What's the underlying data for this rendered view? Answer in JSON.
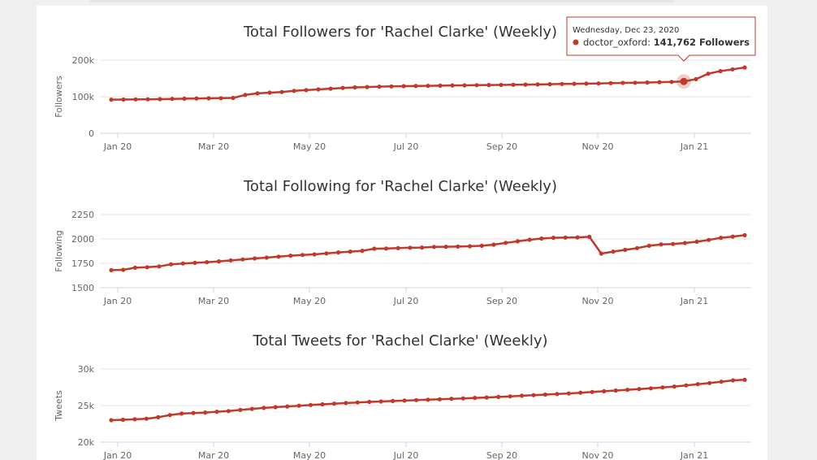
{
  "chart_data": [
    {
      "type": "line",
      "title": "Total Followers for 'Rachel Clarke' (Weekly)",
      "ylabel": "Followers",
      "ylim": [
        0,
        200000
      ],
      "yticks": [
        {
          "v": 0,
          "label": "0"
        },
        {
          "v": 100000,
          "label": "100k"
        },
        {
          "v": 200000,
          "label": "200k"
        }
      ],
      "xticks": [
        "Jan 20",
        "Mar 20",
        "May 20",
        "Jul 20",
        "Sep 20",
        "Nov 20",
        "Jan 21"
      ],
      "series": [
        {
          "color": "#c0392b",
          "values": [
            92000,
            92300,
            92700,
            93000,
            93400,
            94000,
            94600,
            95100,
            95600,
            96000,
            96600,
            105000,
            109000,
            111000,
            113000,
            116000,
            118000,
            120000,
            122000,
            124000,
            125500,
            126500,
            127500,
            128200,
            128800,
            129300,
            129800,
            130300,
            130800,
            131200,
            131600,
            132000,
            132300,
            132700,
            133100,
            133600,
            134200,
            134800,
            135300,
            135800,
            136300,
            137000,
            137700,
            138300,
            139000,
            139700,
            140400,
            141762,
            148000,
            163000,
            170000,
            175000,
            180000
          ]
        }
      ],
      "tooltip": {
        "date": "Wednesday, Dec 23, 2020",
        "series_name": "doctor_oxford",
        "value_text": "141,762 Followers",
        "index": 47
      }
    },
    {
      "type": "line",
      "title": "Total Following for 'Rachel Clarke' (Weekly)",
      "ylabel": "Following",
      "ylim": [
        1500,
        2250
      ],
      "yticks": [
        {
          "v": 1500,
          "label": "1500"
        },
        {
          "v": 1750,
          "label": "1750"
        },
        {
          "v": 2000,
          "label": "2000"
        },
        {
          "v": 2250,
          "label": "2250"
        }
      ],
      "xticks": [
        "Jan 20",
        "Mar 20",
        "May 20",
        "Jul 20",
        "Sep 20",
        "Nov 20",
        "Jan 21"
      ],
      "series": [
        {
          "color": "#c0392b",
          "values": [
            1680,
            1683,
            1705,
            1710,
            1718,
            1740,
            1748,
            1755,
            1762,
            1770,
            1780,
            1790,
            1800,
            1808,
            1818,
            1828,
            1836,
            1842,
            1852,
            1862,
            1870,
            1878,
            1900,
            1902,
            1906,
            1910,
            1912,
            1918,
            1920,
            1922,
            1925,
            1930,
            1942,
            1960,
            1976,
            1992,
            2004,
            2012,
            2014,
            2016,
            2022,
            1850,
            1870,
            1888,
            1906,
            1930,
            1944,
            1948,
            1958,
            1972,
            1990,
            2012,
            2024,
            2038
          ]
        }
      ]
    },
    {
      "type": "line",
      "title": "Total Tweets for 'Rachel Clarke' (Weekly)",
      "ylabel": "Tweets",
      "ylim": [
        20000,
        30000
      ],
      "yticks": [
        {
          "v": 20000,
          "label": "20k"
        },
        {
          "v": 25000,
          "label": "25k"
        },
        {
          "v": 30000,
          "label": "30k"
        }
      ],
      "xticks": [
        "Jan 20",
        "Mar 20",
        "May 20",
        "Jul 20",
        "Sep 20",
        "Nov 20",
        "Jan 21"
      ],
      "series": [
        {
          "color": "#c0392b",
          "values": [
            23000,
            23060,
            23120,
            23200,
            23400,
            23700,
            23900,
            23980,
            24050,
            24150,
            24250,
            24400,
            24550,
            24680,
            24780,
            24880,
            24980,
            25080,
            25170,
            25260,
            25340,
            25420,
            25500,
            25560,
            25620,
            25680,
            25740,
            25800,
            25860,
            25920,
            25980,
            26040,
            26100,
            26180,
            26260,
            26340,
            26420,
            26500,
            26580,
            26660,
            26760,
            26860,
            26960,
            27060,
            27160,
            27260,
            27360,
            27480,
            27600,
            27760,
            27920,
            28080,
            28260,
            28440,
            28520
          ]
        }
      ]
    }
  ]
}
